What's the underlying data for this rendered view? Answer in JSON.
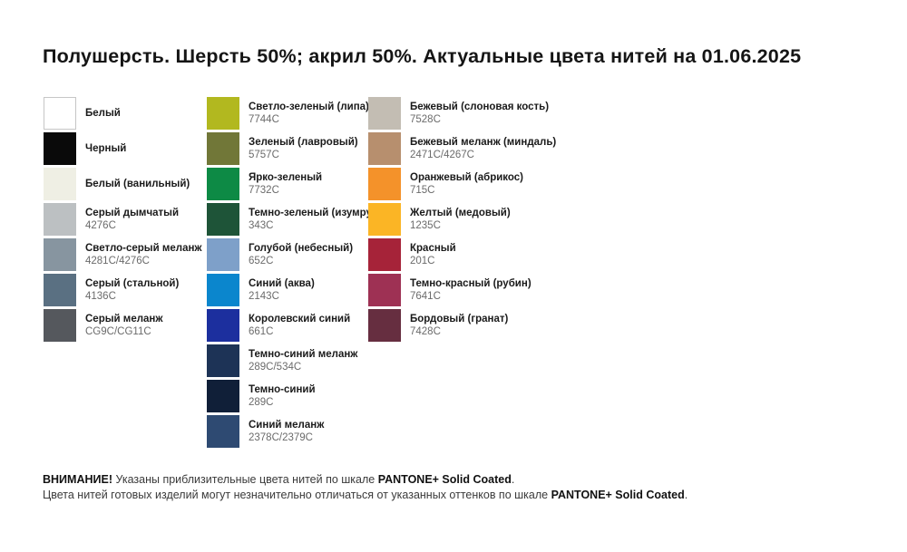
{
  "title": "Полушерсть. Шерсть 50%; акрил 50%. Актуальные цвета нитей на 01.06.2025",
  "columns": [
    {
      "name": "grays",
      "items": [
        {
          "name": "Белый",
          "code": "",
          "color": "#ffffff",
          "bordered": true
        },
        {
          "name": "Черный",
          "code": "",
          "color": "#0a0a0a"
        },
        {
          "name": "Белый (ванильный)",
          "code": "",
          "color": "#efefe4"
        },
        {
          "name": "Серый дымчатый",
          "code": "4276C",
          "color": "#bcc0c2"
        },
        {
          "name": "Светло-серый меланж",
          "code": "4281C/4276C",
          "color": "#8795a0"
        },
        {
          "name": "Серый (стальной)",
          "code": "4136C",
          "color": "#5a7082"
        },
        {
          "name": "Серый меланж",
          "code": "CG9C/CG11C",
          "color": "#55585d"
        }
      ]
    },
    {
      "name": "greens-blues",
      "items": [
        {
          "name": "Светло-зеленый (липа)",
          "code": "7744C",
          "color": "#b2b81f"
        },
        {
          "name": "Зеленый (лавровый)",
          "code": "5757C",
          "color": "#717738"
        },
        {
          "name": "Ярко-зеленый",
          "code": "7732C",
          "color": "#0d8a45"
        },
        {
          "name": "Темно-зеленый (изумруд)",
          "code": "343C",
          "color": "#1e5438"
        },
        {
          "name": "Голубой (небесный)",
          "code": "652C",
          "color": "#7ea0c9"
        },
        {
          "name": "Синий (аква)",
          "code": "2143C",
          "color": "#0b86cd"
        },
        {
          "name": "Королевский синий",
          "code": "661C",
          "color": "#1c2f9e"
        },
        {
          "name": "Темно-синий меланж",
          "code": "289C/534C",
          "color": "#1d3356"
        },
        {
          "name": "Темно-синий",
          "code": "289C",
          "color": "#101f38"
        },
        {
          "name": "Синий меланж",
          "code": "2378C/2379C",
          "color": "#2e4a72"
        }
      ]
    },
    {
      "name": "beiges-reds",
      "items": [
        {
          "name": "Бежевый (слоновая кость)",
          "code": "7528C",
          "color": "#c3bdb3"
        },
        {
          "name": "Бежевый меланж (миндаль)",
          "code": "2471C/4267C",
          "color": "#b78f6e"
        },
        {
          "name": "Оранжевый (абрикос)",
          "code": "715C",
          "color": "#f4922a"
        },
        {
          "name": "Желтый (медовый)",
          "code": "1235C",
          "color": "#fbb525"
        },
        {
          "name": "Красный",
          "code": "201C",
          "color": "#a62339"
        },
        {
          "name": "Темно-красный (рубин)",
          "code": "7641C",
          "color": "#9e3154"
        },
        {
          "name": "Бордовый (гранат)",
          "code": "7428C",
          "color": "#662e40"
        }
      ]
    }
  ],
  "footer": {
    "line1": {
      "bold_prefix": "ВНИМАНИЕ!",
      "text": " Указаны приблизительные цвета нитей по шкале ",
      "bold_scale": "PANTONE+ Solid Coated",
      "period": "."
    },
    "line2": {
      "text": "Цвета нитей готовых изделий могут незначительно отличаться от указанных оттенков по шкале ",
      "bold_scale": "PANTONE+ Solid Coated",
      "period": "."
    }
  }
}
